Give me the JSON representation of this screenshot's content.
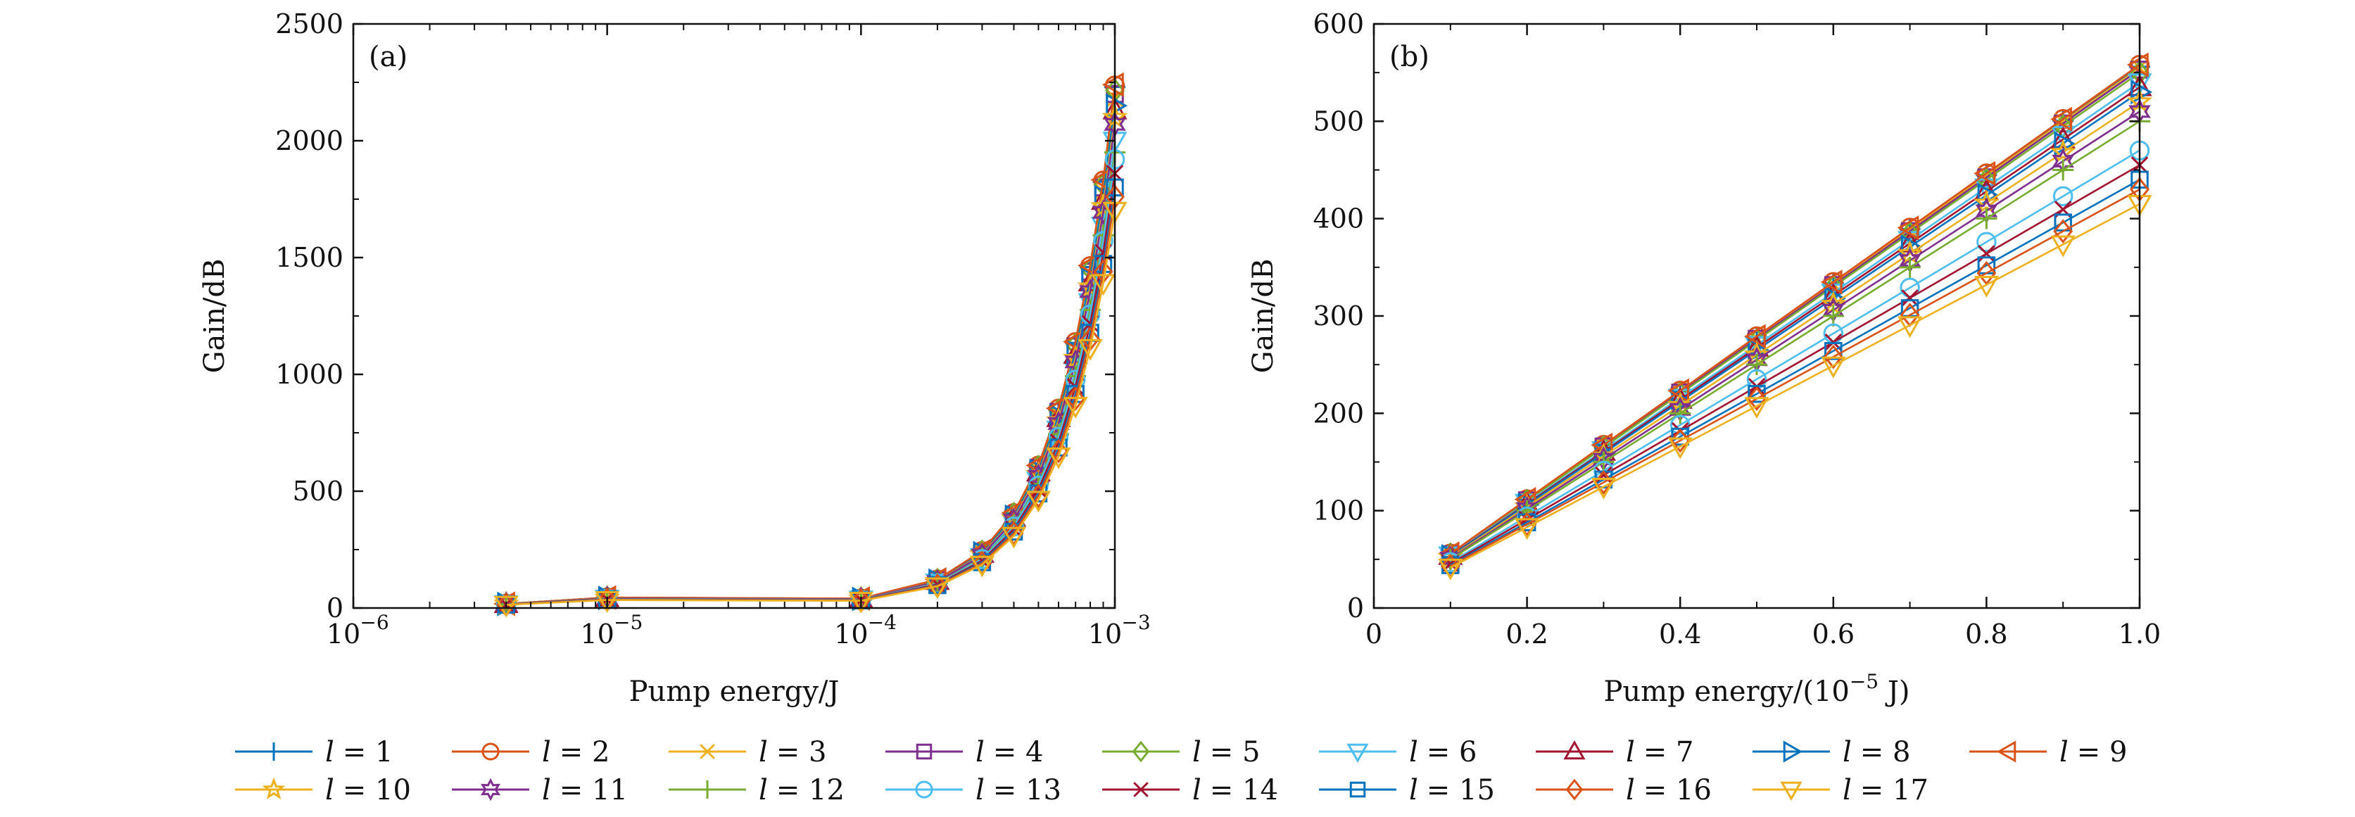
{
  "chart_data": [
    {
      "panel": "(a)",
      "type": "line",
      "xlabel": "Pump energy/J",
      "ylabel": "Gain/dB",
      "xscale": "log",
      "xlim": [
        1e-06,
        0.001
      ],
      "ylim": [
        0,
        2500
      ],
      "x_ticks": [
        {
          "value": 1e-06,
          "base": "10",
          "exp": "−6"
        },
        {
          "value": 1e-05,
          "base": "10",
          "exp": "−5"
        },
        {
          "value": 0.0001,
          "base": "10",
          "exp": "−4"
        },
        {
          "value": 0.001,
          "base": "10",
          "exp": "−3"
        }
      ],
      "y_ticks": [
        0,
        500,
        1000,
        1500,
        2000,
        2500
      ],
      "x": [
        4e-06,
        1e-05,
        0.0001,
        0.0002,
        0.0003,
        0.0004,
        0.0005,
        0.0006,
        0.0007,
        0.0008,
        0.0009,
        0.001
      ],
      "series_gain_at_max": {
        "l=1": 2230,
        "l=2": 2236,
        "l=3": 2180,
        "l=4": 2200,
        "l=5": 2215,
        "l=6": 2000,
        "l=7": 2130,
        "l=8": 2150,
        "l=9": 2240,
        "l=10": 2100,
        "l=11": 2070,
        "l=12": 1950,
        "l=13": 1920,
        "l=14": 1860,
        "l=15": 1800,
        "l=16": 1760,
        "l=17": 1700
      },
      "grid": false,
      "legend_position": "bottom"
    },
    {
      "panel": "(b)",
      "type": "line",
      "xlabel_prefix": "Pump energy/(10",
      "xlabel_exp": "−5",
      "xlabel_suffix": " J)",
      "ylabel": "Gain/dB",
      "xlim": [
        0,
        1.0
      ],
      "ylim": [
        0,
        600
      ],
      "x_ticks": [
        {
          "value": 0,
          "label": "0"
        },
        {
          "value": 0.2,
          "label": "0.2"
        },
        {
          "value": 0.4,
          "label": "0.4"
        },
        {
          "value": 0.6,
          "label": "0.6"
        },
        {
          "value": 0.8,
          "label": "0.8"
        },
        {
          "value": 1.0,
          "label": "1.0"
        }
      ],
      "y_ticks": [
        0,
        100,
        200,
        300,
        400,
        500,
        600
      ],
      "x": [
        0.1,
        0.2,
        0.3,
        0.4,
        0.5,
        0.6,
        0.7,
        0.8,
        0.9,
        1.0
      ],
      "series_gain_at_max": {
        "l=1": 556,
        "l=2": 558,
        "l=3": 555,
        "l=4": 553,
        "l=5": 550,
        "l=6": 540,
        "l=7": 535,
        "l=8": 530,
        "l=9": 558,
        "l=10": 520,
        "l=11": 510,
        "l=12": 500,
        "l=13": 470,
        "l=14": 455,
        "l=15": 440,
        "l=16": 430,
        "l=17": 415
      },
      "grid": false,
      "legend_position": "bottom"
    }
  ],
  "legend": [
    {
      "name": "l = 1",
      "sym": "l",
      "eq": "= 1",
      "color": "#0072BD",
      "marker": "plus"
    },
    {
      "name": "l = 2",
      "sym": "l",
      "eq": "= 2",
      "color": "#D95319",
      "marker": "circle"
    },
    {
      "name": "l = 3",
      "sym": "l",
      "eq": "= 3",
      "color": "#EDB120",
      "marker": "x"
    },
    {
      "name": "l = 4",
      "sym": "l",
      "eq": "= 4",
      "color": "#7E2F8E",
      "marker": "square"
    },
    {
      "name": "l = 5",
      "sym": "l",
      "eq": "= 5",
      "color": "#77AC30",
      "marker": "diamond"
    },
    {
      "name": "l = 6",
      "sym": "l",
      "eq": "= 6",
      "color": "#4DBEEE",
      "marker": "triangle-down"
    },
    {
      "name": "l = 7",
      "sym": "l",
      "eq": "= 7",
      "color": "#A2142F",
      "marker": "triangle-up"
    },
    {
      "name": "l = 8",
      "sym": "l",
      "eq": "= 8",
      "color": "#0072BD",
      "marker": "triangle-right"
    },
    {
      "name": "l = 9",
      "sym": "l",
      "eq": "= 9",
      "color": "#D95319",
      "marker": "triangle-left"
    },
    {
      "name": "l = 10",
      "sym": "l",
      "eq": "= 10",
      "color": "#EDB120",
      "marker": "pentagram"
    },
    {
      "name": "l = 11",
      "sym": "l",
      "eq": "= 11",
      "color": "#7E2F8E",
      "marker": "hexagram"
    },
    {
      "name": "l = 12",
      "sym": "l",
      "eq": "= 12",
      "color": "#77AC30",
      "marker": "plus"
    },
    {
      "name": "l = 13",
      "sym": "l",
      "eq": "= 13",
      "color": "#4DBEEE",
      "marker": "circle"
    },
    {
      "name": "l = 14",
      "sym": "l",
      "eq": "= 14",
      "color": "#A2142F",
      "marker": "x"
    },
    {
      "name": "l = 15",
      "sym": "l",
      "eq": "= 15",
      "color": "#0072BD",
      "marker": "square"
    },
    {
      "name": "l = 16",
      "sym": "l",
      "eq": "= 16",
      "color": "#D95319",
      "marker": "diamond"
    },
    {
      "name": "l = 17",
      "sym": "l",
      "eq": "= 17",
      "color": "#EDB120",
      "marker": "triangle-down"
    }
  ]
}
